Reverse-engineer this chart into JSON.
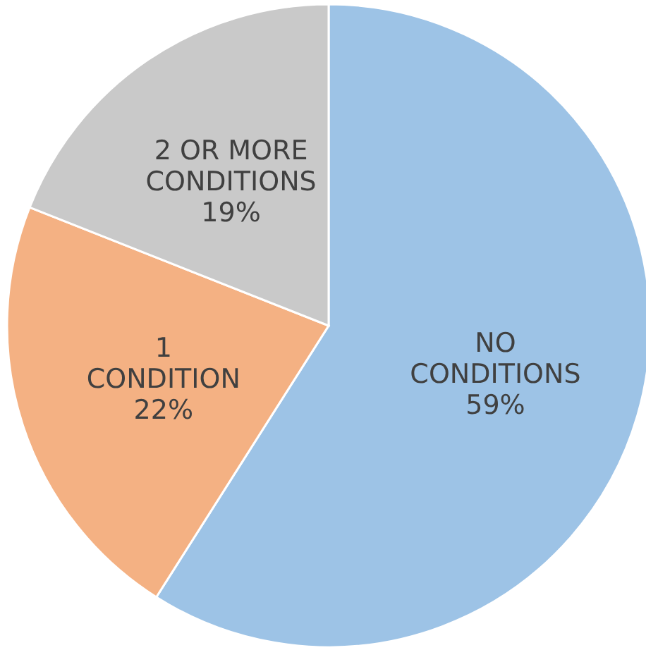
{
  "chart_data": {
    "type": "pie",
    "categories": [
      "NO CONDITIONS",
      "1 CONDITION",
      "2 OR MORE CONDITIONS"
    ],
    "values": [
      59,
      22,
      19
    ],
    "value_labels": [
      "59%",
      "22%",
      "19%"
    ],
    "colors": [
      "#9dc3e6",
      "#f4b183",
      "#c9c9c9"
    ],
    "legend": false
  }
}
